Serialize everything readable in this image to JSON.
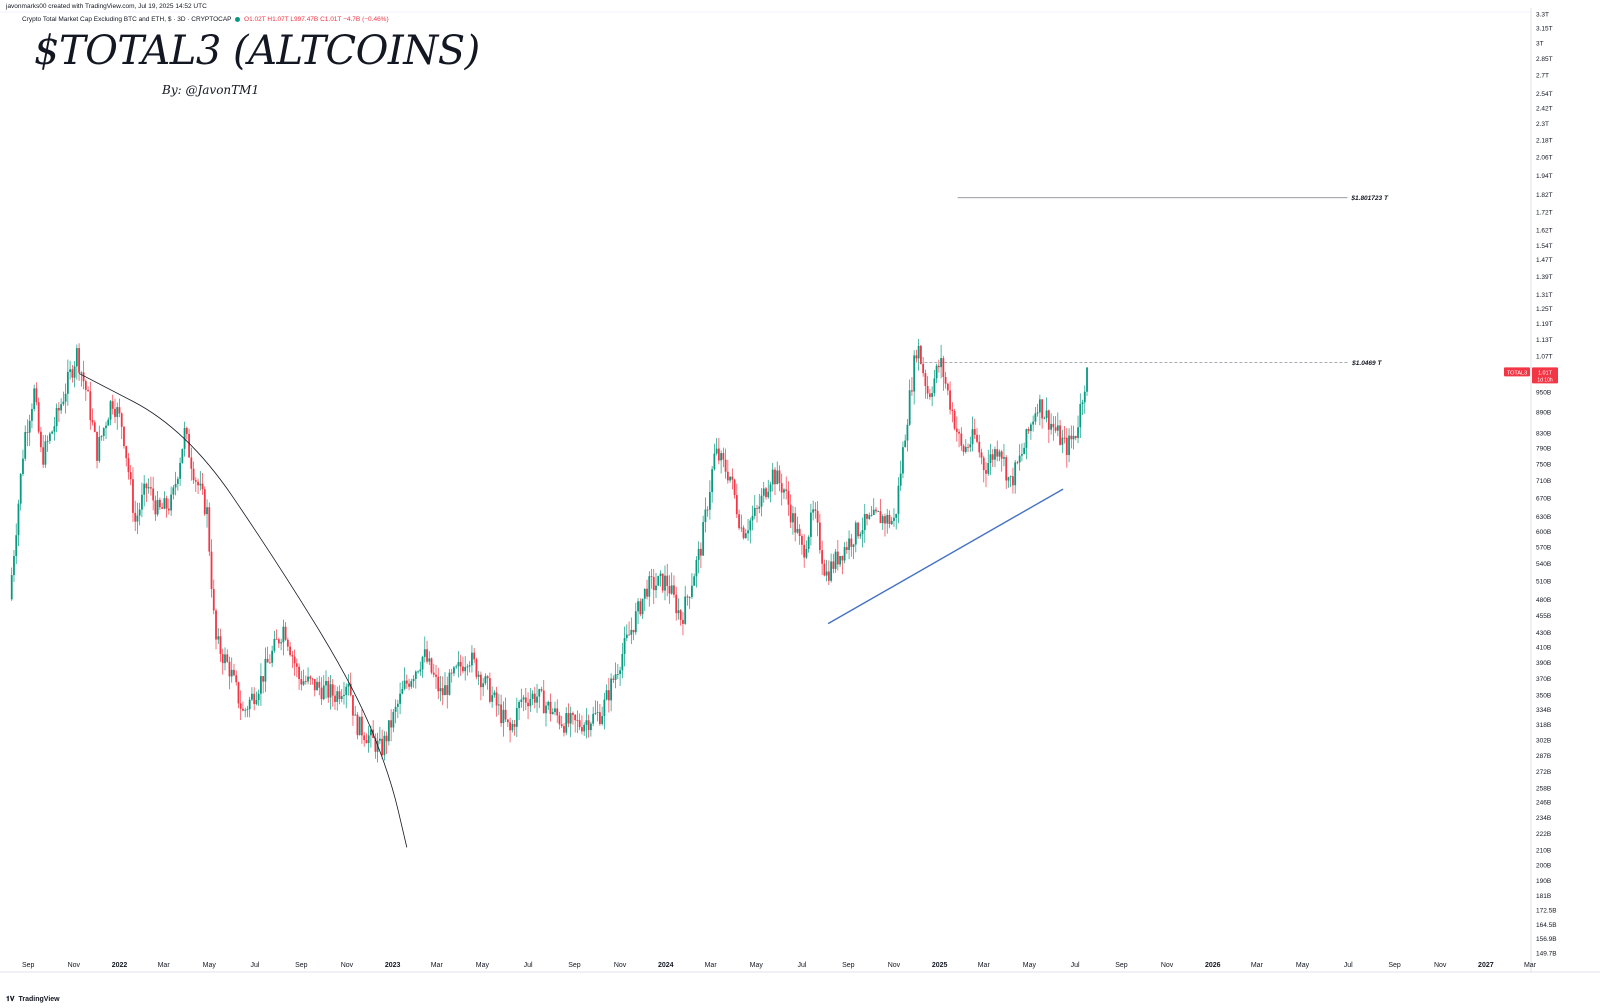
{
  "header": {
    "credit": "javonmarks00 created with TradingView.com, Jul 19, 2025 14:52 UTC",
    "symbol_desc": "Crypto Total Market Cap Excluding BTC and ETH, $ · 3D · CRYPTOCAP",
    "open": "O1.02T",
    "high": "H1.07T",
    "low": "L997.47B",
    "close": "C1.01T",
    "change": "−4.7B (−0.46%)"
  },
  "title": "$TOTAL3 (ALTCOINS)",
  "subtitle": "By: @JavonTM1",
  "brand": "TradingView",
  "colors": {
    "up": "#089981",
    "down": "#f23645",
    "trendline": "#4472c4",
    "curve": "#131722",
    "price_label": "#f23645"
  },
  "chart_data": {
    "type": "candlestick",
    "y_scale": "log",
    "ylim": [
      "149.7B",
      "3.3T"
    ],
    "y_ticks": [
      "3.3T",
      "3.15T",
      "3T",
      "2.85T",
      "2.7T",
      "2.54T",
      "2.42T",
      "2.3T",
      "2.18T",
      "2.06T",
      "1.94T",
      "1.82T",
      "1.72T",
      "1.62T",
      "1.54T",
      "1.47T",
      "1.39T",
      "1.31T",
      "1.25T",
      "1.19T",
      "1.13T",
      "1.07T",
      "1.01T",
      "950B",
      "890B",
      "830B",
      "790B",
      "750B",
      "710B",
      "670B",
      "630B",
      "600B",
      "570B",
      "540B",
      "510B",
      "480B",
      "455B",
      "430B",
      "410B",
      "390B",
      "370B",
      "350B",
      "334B",
      "318B",
      "302B",
      "287B",
      "272B",
      "258B",
      "246B",
      "234B",
      "222B",
      "210B",
      "200B",
      "190B",
      "181B",
      "172.5B",
      "164.5B",
      "156.9B",
      "149.7B"
    ],
    "x_ticks": [
      "Sep",
      "Nov",
      "2022",
      "Mar",
      "May",
      "Jul",
      "Sep",
      "Nov",
      "2023",
      "Mar",
      "May",
      "Jul",
      "Sep",
      "Nov",
      "2024",
      "Mar",
      "May",
      "Jul",
      "Sep",
      "Nov",
      "2025",
      "Mar",
      "May",
      "Jul",
      "Sep",
      "Nov",
      "2026",
      "Mar",
      "May",
      "Jul",
      "Sep",
      "Nov",
      "2027",
      "Mar"
    ],
    "x_range": [
      "2021-08",
      "2027-03"
    ],
    "series": [
      {
        "price_path": [
          [
            "2021-08-10",
            480
          ],
          [
            "2021-08-30",
            820
          ],
          [
            "2021-09-12",
            950
          ],
          [
            "2021-09-22",
            760
          ],
          [
            "2021-10-10",
            860
          ],
          [
            "2021-11-08",
            1080
          ],
          [
            "2021-11-22",
            940
          ],
          [
            "2021-12-05",
            780
          ],
          [
            "2021-12-25",
            930
          ],
          [
            "2022-01-08",
            850
          ],
          [
            "2022-01-25",
            620
          ],
          [
            "2022-02-10",
            700
          ],
          [
            "2022-02-25",
            640
          ],
          [
            "2022-03-15",
            660
          ],
          [
            "2022-04-01",
            830
          ],
          [
            "2022-04-15",
            720
          ],
          [
            "2022-05-01",
            640
          ],
          [
            "2022-05-12",
            420
          ],
          [
            "2022-06-01",
            380
          ],
          [
            "2022-06-18",
            330
          ],
          [
            "2022-07-08",
            360
          ],
          [
            "2022-08-12",
            440
          ],
          [
            "2022-09-01",
            370
          ],
          [
            "2022-09-25",
            360
          ],
          [
            "2022-10-20",
            350
          ],
          [
            "2022-11-06",
            370
          ],
          [
            "2022-11-15",
            320
          ],
          [
            "2022-12-20",
            292
          ],
          [
            "2023-01-20",
            360
          ],
          [
            "2023-02-15",
            400
          ],
          [
            "2023-03-10",
            350
          ],
          [
            "2023-04-15",
            400
          ],
          [
            "2023-05-10",
            360
          ],
          [
            "2023-06-10",
            310
          ],
          [
            "2023-06-25",
            345
          ],
          [
            "2023-07-15",
            350
          ],
          [
            "2023-08-20",
            320
          ],
          [
            "2023-09-10",
            318
          ],
          [
            "2023-10-10",
            330
          ],
          [
            "2023-11-10",
            410
          ],
          [
            "2023-12-10",
            500
          ],
          [
            "2024-01-05",
            510
          ],
          [
            "2024-01-25",
            450
          ],
          [
            "2024-02-20",
            570
          ],
          [
            "2024-03-10",
            780
          ],
          [
            "2024-03-30",
            720
          ],
          [
            "2024-04-15",
            600
          ],
          [
            "2024-05-05",
            640
          ],
          [
            "2024-05-25",
            730
          ],
          [
            "2024-06-10",
            690
          ],
          [
            "2024-07-05",
            560
          ],
          [
            "2024-07-20",
            640
          ],
          [
            "2024-08-05",
            520
          ],
          [
            "2024-08-25",
            560
          ],
          [
            "2024-09-20",
            610
          ],
          [
            "2024-10-15",
            630
          ],
          [
            "2024-11-05",
            620
          ],
          [
            "2024-11-20",
            850
          ],
          [
            "2024-12-05",
            1120
          ],
          [
            "2024-12-20",
            940
          ],
          [
            "2025-01-05",
            1050
          ],
          [
            "2025-01-20",
            900
          ],
          [
            "2025-02-03",
            780
          ],
          [
            "2025-02-20",
            820
          ],
          [
            "2025-03-05",
            740
          ],
          [
            "2025-03-25",
            800
          ],
          [
            "2025-04-08",
            700
          ],
          [
            "2025-04-25",
            780
          ],
          [
            "2025-05-15",
            920
          ],
          [
            "2025-06-01",
            860
          ],
          [
            "2025-06-22",
            790
          ],
          [
            "2025-07-05",
            830
          ],
          [
            "2025-07-19",
            1010
          ]
        ]
      }
    ],
    "annotations": {
      "resistance_1": {
        "value": "$1.801723 T",
        "y": 1801.723,
        "x_start": "2025-01-25",
        "x_end": "2026-06-30"
      },
      "resistance_2": {
        "value": "$1.0469 T",
        "y": 1046.9,
        "x_start": "2024-12-05",
        "x_end": "2026-07-01",
        "style": "dashed"
      },
      "trendline": {
        "start": [
          "2024-08-05",
          443
        ],
        "end": [
          "2025-06-15",
          690
        ]
      },
      "curve": {
        "points": [
          [
            "2021-11-08",
            1010
          ],
          [
            "2022-04-01",
            840
          ],
          [
            "2022-08-01",
            540
          ],
          [
            "2022-11-10",
            360
          ],
          [
            "2022-12-28",
            270
          ],
          [
            "2023-01-20",
            212
          ]
        ]
      },
      "last_price": {
        "symbol": "TOTAL3",
        "price": "1.01T",
        "countdown": "1d 10h"
      }
    }
  }
}
